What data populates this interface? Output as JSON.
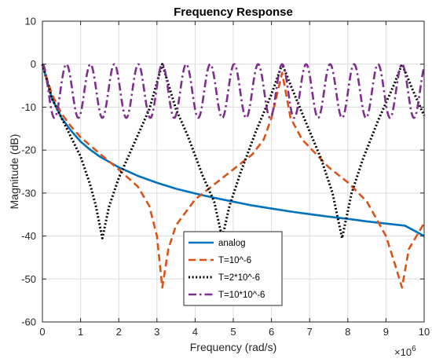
{
  "chart_data": {
    "type": "line",
    "title": "Frequency Response",
    "xlabel": "Frequency (rad/s)",
    "ylabel": "Magnitude (dB)",
    "x_exponent_base": "×10",
    "x_exponent_power": "6",
    "xlim": [
      0,
      10
    ],
    "ylim": [
      -60,
      10
    ],
    "xticks": [
      0,
      1,
      2,
      3,
      4,
      5,
      6,
      7,
      8,
      9,
      10
    ],
    "yticks": [
      -60,
      -50,
      -40,
      -30,
      -20,
      -10,
      0,
      10
    ],
    "grid": true,
    "legend_position": "bottom-center",
    "series": [
      {
        "name": "analog",
        "color": "#0072BD",
        "style": "solid",
        "x": [
          0,
          0.25,
          0.5,
          0.75,
          1,
          1.25,
          1.5,
          2,
          2.5,
          3,
          3.5,
          4,
          4.5,
          5,
          5.5,
          6,
          6.5,
          7,
          7.5,
          8,
          8.5,
          9,
          9.5,
          10
        ],
        "y": [
          0,
          -8,
          -12.5,
          -15.5,
          -18,
          -19.9,
          -21.5,
          -24,
          -26,
          -27.6,
          -29,
          -30.1,
          -31.1,
          -32,
          -32.9,
          -33.6,
          -34.3,
          -34.9,
          -35.5,
          -36,
          -36.6,
          -37.1,
          -37.6,
          -40
        ]
      },
      {
        "name": "T=10^-6",
        "color": "#D95319",
        "style": "dashed",
        "x": [
          0,
          0.25,
          0.5,
          0.75,
          1,
          1.5,
          2,
          2.5,
          2.8,
          3.0,
          3.14,
          3.3,
          3.5,
          4,
          4.5,
          5,
          5.5,
          5.8,
          6.0,
          6.28,
          6.5,
          6.8,
          7.5,
          8,
          8.5,
          9.0,
          9.25,
          9.42,
          9.6,
          10
        ],
        "y": [
          0,
          -7,
          -11.5,
          -14.5,
          -17,
          -20.8,
          -24.5,
          -28.5,
          -33,
          -40,
          -52,
          -43,
          -37.5,
          -31.5,
          -28,
          -24.5,
          -21,
          -17.5,
          -12.5,
          -2,
          -12.5,
          -17.5,
          -24,
          -27.5,
          -32,
          -40,
          -47,
          -52,
          -43,
          -37
        ]
      },
      {
        "name": "T=2*10^-6",
        "color": "#000000",
        "style": "dotted",
        "x": [
          0,
          0.25,
          0.5,
          0.75,
          1,
          1.25,
          1.4,
          1.57,
          1.75,
          2,
          2.5,
          2.8,
          3.14,
          3.5,
          3.8,
          4.2,
          4.5,
          4.71,
          4.9,
          5.2,
          5.6,
          6.0,
          6.28,
          6.6,
          6.9,
          7.3,
          7.6,
          7.85,
          8.1,
          8.4,
          8.8,
          9.2,
          9.42,
          9.7,
          10
        ],
        "y": [
          0,
          -8,
          -12.5,
          -17,
          -21.5,
          -28,
          -33,
          -40.5,
          -33,
          -26.5,
          -16.5,
          -10.5,
          0,
          -10.5,
          -16.5,
          -26,
          -32,
          -40.5,
          -33,
          -25,
          -15.5,
          -7,
          0,
          -7,
          -13.5,
          -22,
          -30,
          -40.5,
          -30,
          -22,
          -13,
          -5,
          0,
          -6,
          -12
        ]
      },
      {
        "name": "T=10*10^-6",
        "color": "#7E2F8E",
        "style": "dashdot",
        "x": [],
        "y": [],
        "period": 0.628,
        "peak_db": 0,
        "trough_db": -12.5
      }
    ]
  }
}
